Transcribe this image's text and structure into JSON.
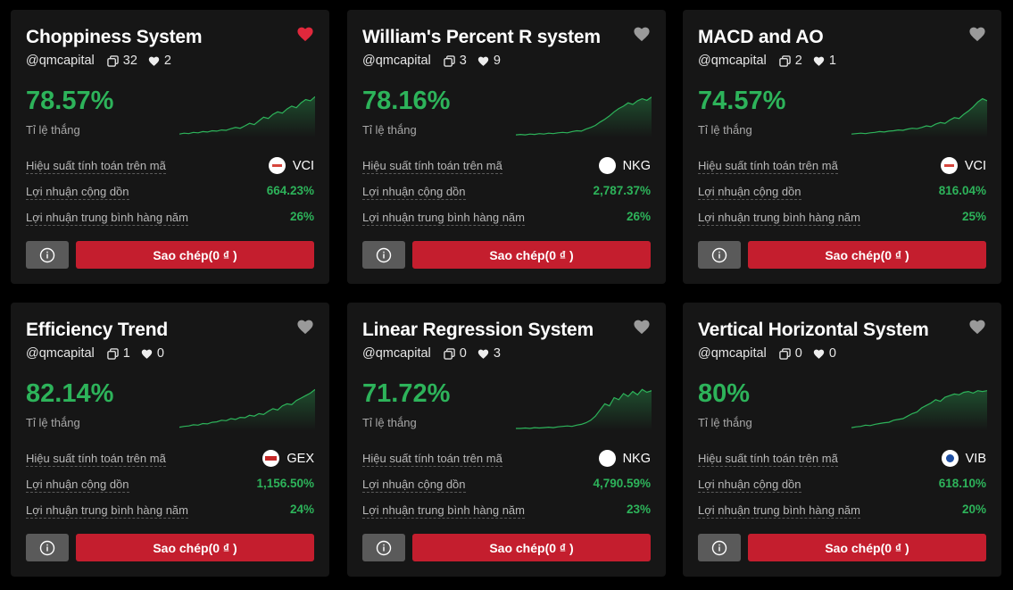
{
  "colors": {
    "background": "#000000",
    "card": "#161616",
    "positive": "#2db35a",
    "copy_button": "#c41e2e",
    "info_button": "#5a5a5a",
    "heart_liked": "#e0283c",
    "heart_default": "#9a9a9a"
  },
  "labels": {
    "win_rate": "Tỉ lệ thắng",
    "performance_on_symbol": "Hiệu suất tính toán trên mã",
    "cumulative_profit": "Lợi nhuận cộng dồn",
    "avg_annual_profit": "Lợi nhuận trung bình hàng năm",
    "copy_button": "Sao chép(0 ₫ )"
  },
  "cards": [
    {
      "title": "Choppiness System",
      "author": "@qmcapital",
      "copies": "32",
      "likes": "2",
      "liked": true,
      "win_rate": "78.57%",
      "symbol": "VCI",
      "cumulative_profit": "664.23%",
      "avg_annual_profit": "26%",
      "spark": [
        0.04,
        0.06,
        0.05,
        0.08,
        0.07,
        0.1,
        0.09,
        0.12,
        0.11,
        0.14,
        0.13,
        0.17,
        0.2,
        0.18,
        0.24,
        0.3,
        0.27,
        0.36,
        0.45,
        0.42,
        0.52,
        0.58,
        0.55,
        0.65,
        0.72,
        0.68,
        0.8,
        0.88,
        0.85,
        0.95
      ]
    },
    {
      "title": "William's Percent R system",
      "author": "@qmcapital",
      "copies": "3",
      "likes": "9",
      "liked": false,
      "win_rate": "78.16%",
      "symbol": "NKG",
      "cumulative_profit": "2,787.37%",
      "avg_annual_profit": "26%",
      "spark": [
        0.02,
        0.03,
        0.02,
        0.04,
        0.03,
        0.05,
        0.04,
        0.06,
        0.05,
        0.07,
        0.08,
        0.07,
        0.1,
        0.12,
        0.11,
        0.16,
        0.2,
        0.25,
        0.33,
        0.4,
        0.48,
        0.58,
        0.66,
        0.72,
        0.8,
        0.76,
        0.85,
        0.9,
        0.86,
        0.94
      ]
    },
    {
      "title": "MACD and AO",
      "author": "@qmcapital",
      "copies": "2",
      "likes": "1",
      "liked": false,
      "win_rate": "74.57%",
      "symbol": "VCI",
      "cumulative_profit": "816.04%",
      "avg_annual_profit": "25%",
      "spark": [
        0.04,
        0.05,
        0.06,
        0.05,
        0.07,
        0.08,
        0.1,
        0.09,
        0.11,
        0.12,
        0.14,
        0.13,
        0.16,
        0.18,
        0.17,
        0.2,
        0.24,
        0.22,
        0.28,
        0.32,
        0.3,
        0.38,
        0.44,
        0.42,
        0.52,
        0.6,
        0.7,
        0.82,
        0.9,
        0.85
      ]
    },
    {
      "title": "Efficiency Trend",
      "author": "@qmcapital",
      "copies": "1",
      "likes": "0",
      "liked": false,
      "win_rate": "82.14%",
      "symbol": "GEX",
      "cumulative_profit": "1,156.50%",
      "avg_annual_profit": "24%",
      "spark": [
        0.03,
        0.05,
        0.06,
        0.09,
        0.08,
        0.12,
        0.11,
        0.15,
        0.16,
        0.2,
        0.19,
        0.24,
        0.22,
        0.27,
        0.26,
        0.32,
        0.3,
        0.36,
        0.34,
        0.42,
        0.48,
        0.45,
        0.55,
        0.6,
        0.58,
        0.68,
        0.74,
        0.8,
        0.86,
        0.95
      ]
    },
    {
      "title": "Linear Regression System",
      "author": "@qmcapital",
      "copies": "0",
      "likes": "3",
      "liked": false,
      "win_rate": "71.72%",
      "symbol": "NKG",
      "cumulative_profit": "4,790.59%",
      "avg_annual_profit": "23%",
      "spark": [
        0.0,
        0.0,
        0.01,
        0.0,
        0.02,
        0.01,
        0.02,
        0.03,
        0.02,
        0.04,
        0.05,
        0.06,
        0.05,
        0.08,
        0.1,
        0.14,
        0.2,
        0.3,
        0.45,
        0.6,
        0.55,
        0.75,
        0.7,
        0.85,
        0.78,
        0.9,
        0.82,
        0.95,
        0.88,
        0.92
      ]
    },
    {
      "title": "Vertical Horizontal System",
      "author": "@qmcapital",
      "copies": "0",
      "likes": "0",
      "liked": false,
      "win_rate": "80%",
      "symbol": "VIB",
      "cumulative_profit": "618.10%",
      "avg_annual_profit": "20%",
      "spark": [
        0.02,
        0.04,
        0.05,
        0.08,
        0.07,
        0.1,
        0.12,
        0.14,
        0.15,
        0.2,
        0.22,
        0.24,
        0.3,
        0.36,
        0.4,
        0.5,
        0.56,
        0.62,
        0.7,
        0.66,
        0.76,
        0.8,
        0.84,
        0.82,
        0.88,
        0.9,
        0.86,
        0.92,
        0.9,
        0.92
      ]
    }
  ]
}
